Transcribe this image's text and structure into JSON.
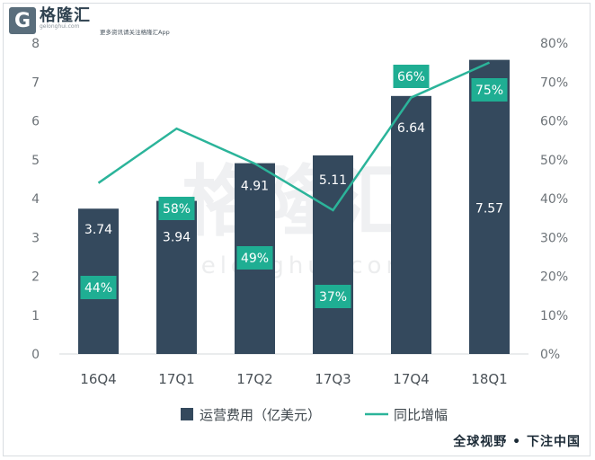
{
  "brand": {
    "logo_letter": "G",
    "name": "格隆汇",
    "domain": "gelonghui.com",
    "slogan": "更多资讯请关注格隆汇App"
  },
  "watermark": {
    "main": "格隆汇",
    "sub": "gelonghui.com"
  },
  "footer": {
    "tag": "全球视野 • 下注中国"
  },
  "colors": {
    "bar": "#34495d",
    "line": "#2bb49a",
    "label_box": "#1fae93"
  },
  "chart_data": {
    "type": "bar",
    "categories": [
      "16Q4",
      "17Q1",
      "17Q2",
      "17Q3",
      "17Q4",
      "18Q1"
    ],
    "series": [
      {
        "name": "运营费用（亿美元）",
        "type": "bar",
        "axis": "left",
        "values": [
          3.74,
          3.94,
          4.91,
          5.11,
          6.64,
          7.57
        ],
        "labels": [
          "3.74",
          "3.94",
          "4.91",
          "5.11",
          "6.64",
          "7.57"
        ]
      },
      {
        "name": "同比增幅",
        "type": "line",
        "axis": "right",
        "values": [
          44,
          58,
          49,
          37,
          66,
          75
        ],
        "labels": [
          "44%",
          "58%",
          "49%",
          "37%",
          "66%",
          "75%"
        ]
      }
    ],
    "y_left": {
      "ylim": [
        0,
        8
      ],
      "ticks": [
        "0",
        "1",
        "2",
        "3",
        "4",
        "5",
        "6",
        "7",
        "8"
      ]
    },
    "y_right": {
      "ylim": [
        0,
        80
      ],
      "ticks": [
        "0%",
        "10%",
        "20%",
        "30%",
        "40%",
        "50%",
        "60%",
        "70%",
        "80%"
      ]
    },
    "grid": false,
    "legend": "bottom"
  }
}
